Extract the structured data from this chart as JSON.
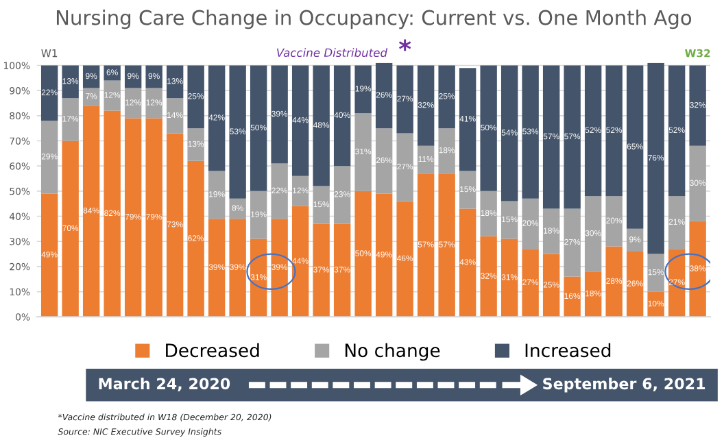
{
  "chart_data": {
    "type": "bar",
    "stacked": true,
    "title": "Nursing Care Change in Occupancy: Current vs. One Month Ago",
    "categories": [
      null,
      null,
      null,
      null,
      null,
      null,
      null,
      null,
      null,
      null,
      null,
      null,
      null,
      null,
      null,
      null,
      null,
      null,
      null,
      null,
      null,
      null,
      null,
      null,
      null,
      null,
      null,
      null,
      null,
      null,
      null,
      null
    ],
    "series": [
      {
        "name": "Decreased",
        "color": "#ed7d31",
        "values": [
          49,
          70,
          84,
          82,
          79,
          79,
          73,
          62,
          39,
          39,
          31,
          39,
          44,
          37,
          37,
          50,
          49,
          46,
          57,
          57,
          43,
          32,
          31,
          27,
          25,
          16,
          18,
          28,
          26,
          10,
          27,
          38
        ],
        "value_labels": [
          "49%",
          "70%",
          "84%",
          "82%",
          "79%",
          "79%",
          "73%",
          "62%",
          "39%",
          "39%",
          "31%",
          "39%",
          "44%",
          "37%",
          "37%",
          "50%",
          "49%",
          "46%",
          "57%",
          "57%",
          "43%",
          "32%",
          "31%",
          "27%",
          "25%",
          "16%",
          "18%",
          "28%",
          "26%",
          "10%",
          "27%",
          "38%"
        ]
      },
      {
        "name": "No change",
        "color": "#a5a5a5",
        "values": [
          29,
          17,
          7,
          12,
          12,
          12,
          14,
          13,
          19,
          8,
          19,
          22,
          12,
          15,
          23,
          31,
          26,
          27,
          11,
          18,
          15,
          18,
          15,
          20,
          18,
          27,
          30,
          20,
          9,
          15,
          21,
          30
        ],
        "value_labels": [
          "29%",
          "17%",
          "7%",
          "12%",
          "12%",
          "12%",
          "14%",
          "13%",
          "19%",
          "8%",
          "19%",
          "22%",
          "12%",
          "15%",
          "23%",
          "31%",
          "26%",
          "27%",
          "11%",
          "18%",
          "15%",
          "18%",
          "15%",
          "20%",
          "18%",
          "27%",
          "30%",
          "20%",
          "9%",
          "15%",
          "21%",
          "30%"
        ]
      },
      {
        "name": "Increased",
        "color": "#44546a",
        "values": [
          22,
          13,
          9,
          6,
          9,
          9,
          13,
          25,
          42,
          53,
          50,
          39,
          44,
          48,
          40,
          19,
          26,
          27,
          32,
          25,
          41,
          50,
          54,
          53,
          57,
          57,
          52,
          52,
          65,
          76,
          52,
          32
        ],
        "value_labels": [
          "22%",
          "13%",
          "9%",
          "6%",
          "9%",
          "9%",
          "13%",
          "25%",
          "42%",
          "53%",
          "50%",
          "39%",
          "44%",
          "48%",
          "40%",
          "19%",
          "26%",
          "27%",
          "32%",
          "25%",
          "41%",
          "50%",
          "54%",
          "53%",
          "57%",
          "57%",
          "52%",
          "52%",
          "65%",
          "76%",
          "52%",
          "32%"
        ]
      }
    ],
    "ylim": [
      0,
      101
    ],
    "yticks": [
      {
        "value": 0,
        "label": "0%"
      },
      {
        "value": 10,
        "label": "10%"
      },
      {
        "value": 20,
        "label": "20%"
      },
      {
        "value": 30,
        "label": "30%"
      },
      {
        "value": 40,
        "label": "40%"
      },
      {
        "value": 50,
        "label": "50%"
      },
      {
        "value": 60,
        "label": "60%"
      },
      {
        "value": 70,
        "label": "70%"
      },
      {
        "value": 80,
        "label": "80%"
      },
      {
        "value": 90,
        "label": "90%"
      },
      {
        "value": 100,
        "label": "100%"
      }
    ],
    "grid": "y",
    "legend": "bottom",
    "annotations": [
      "W1",
      "W32",
      "Vaccine Distributed",
      "*",
      "March 24, 2020",
      "September 6, 2021",
      "*Vaccine distributed in W18 (December 20, 2020)",
      "Source: NIC Executive Survey Insights"
    ]
  }
}
